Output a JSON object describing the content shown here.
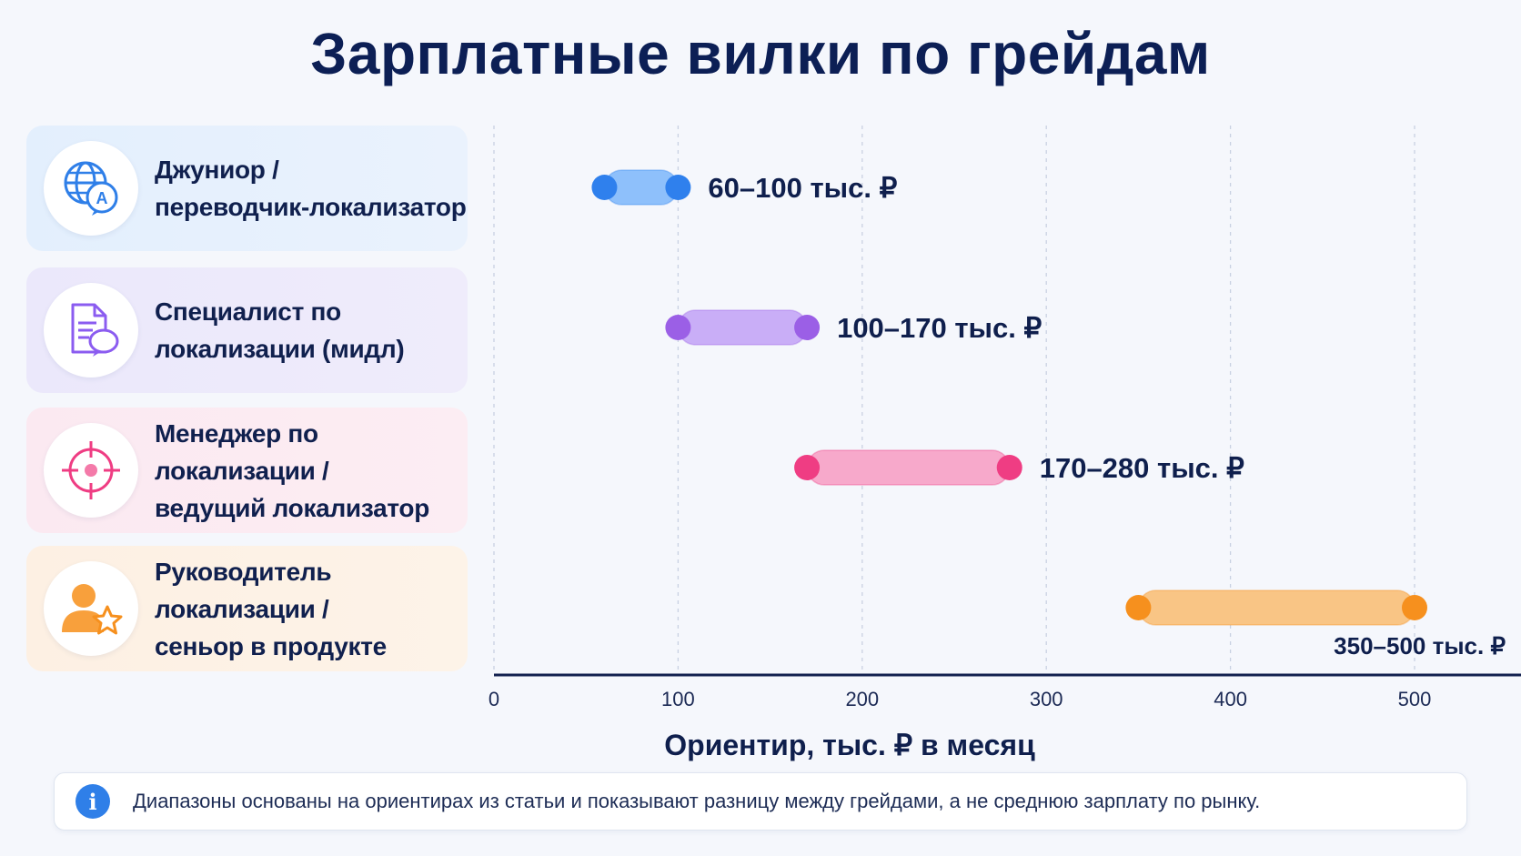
{
  "title": "Зарплатные вилки по грейдам",
  "grades": [
    {
      "label": "Джуниор /\nпереводчик-локализатор",
      "icon": "globe-translate-icon"
    },
    {
      "label": "Специалист по\nлокализации (мидл)",
      "icon": "document-chat-icon"
    },
    {
      "label": "Менеджер по локализации /\nведущий локализатор",
      "icon": "target-crosshair-icon"
    },
    {
      "label": "Руководитель локализации /\nсеньор в продукте",
      "icon": "person-star-icon"
    }
  ],
  "chart_data": {
    "type": "range-bar",
    "xlabel": "Ориентир, тыс. ₽ в месяц",
    "xlim": [
      0,
      550
    ],
    "xticks": [
      0,
      100,
      200,
      300,
      400,
      500
    ],
    "grid": "vertical dashed",
    "series": [
      {
        "category": "Джуниор / переводчик-локализатор",
        "min": 60,
        "max": 100,
        "label": "60–100 тыс. ₽",
        "color": "#2f80ed",
        "fill": "#8ec0fb"
      },
      {
        "category": "Специалист по локализации (мидл)",
        "min": 100,
        "max": 170,
        "label": "100–170 тыс. ₽",
        "color": "#9b5fe6",
        "fill": "#c9aef7"
      },
      {
        "category": "Менеджер по локализации / ведущий локализатор",
        "min": 170,
        "max": 280,
        "label": "170–280 тыс. ₽",
        "color": "#ef3d83",
        "fill": "#f7a9cb"
      },
      {
        "category": "Руководитель локализации / сеньор в продукте",
        "min": 350,
        "max": 500,
        "label": "350–500 тыс. ₽",
        "color": "#f6901e",
        "fill": "#f9c585"
      }
    ]
  },
  "note": {
    "icon": "info-icon",
    "text": "Диапазоны основаны на ориентирах из статьи и показывают разницу между грейдами, а не среднюю зарплату по рынку."
  }
}
